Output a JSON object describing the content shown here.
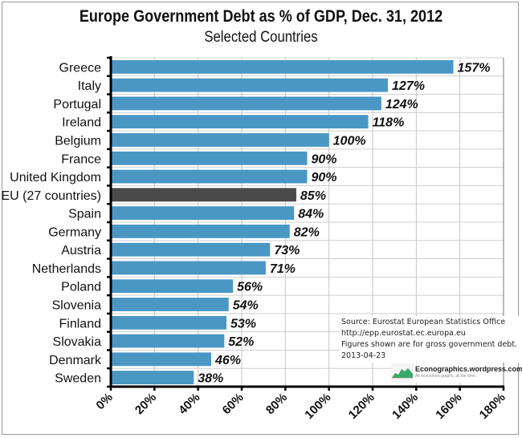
{
  "chart_data": {
    "type": "bar",
    "orientation": "horizontal",
    "title": "Europe Government Debt as % of GDP, Dec. 31, 2012",
    "subtitle": "Selected Countries",
    "xlabel": "",
    "ylabel": "",
    "xlim": [
      0,
      180
    ],
    "x_ticks": [
      0,
      20,
      40,
      60,
      80,
      100,
      120,
      140,
      160,
      180
    ],
    "x_tick_labels": [
      "0%",
      "20%",
      "40%",
      "60%",
      "80%",
      "100%",
      "120%",
      "140%",
      "160%",
      "180%"
    ],
    "grid": true,
    "categories": [
      "Greece",
      "Italy",
      "Portugal",
      "Ireland",
      "Belgium",
      "France",
      "United Kingdom",
      "EU (27 countries)",
      "Spain",
      "Germany",
      "Austria",
      "Netherlands",
      "Poland",
      "Slovenia",
      "Finland",
      "Slovakia",
      "Denmark",
      "Sweden"
    ],
    "values": [
      157,
      127,
      124,
      118,
      100,
      90,
      90,
      85,
      84,
      82,
      73,
      71,
      56,
      54,
      53,
      52,
      46,
      38
    ],
    "value_labels": [
      "157%",
      "127%",
      "124%",
      "118%",
      "100%",
      "90%",
      "90%",
      "85%",
      "84%",
      "82%",
      "73%",
      "71%",
      "56%",
      "54%",
      "53%",
      "52%",
      "46%",
      "38%"
    ],
    "highlight_category": "EU (27 countries)",
    "colors": {
      "bar": "#4a97c4",
      "highlight": "#4a4a4a"
    },
    "annotation": {
      "lines": [
        "Source: Eurostat European Statistics Office",
        "http://epp.eurostat.ec.europa.eu",
        "Figures shown are for gross government debt.",
        "2013-04-23"
      ],
      "placement": "bottom-right"
    },
    "watermark": {
      "name": "Econographics.wordpress.com",
      "tagline": "All economics graphs, all the time."
    }
  }
}
